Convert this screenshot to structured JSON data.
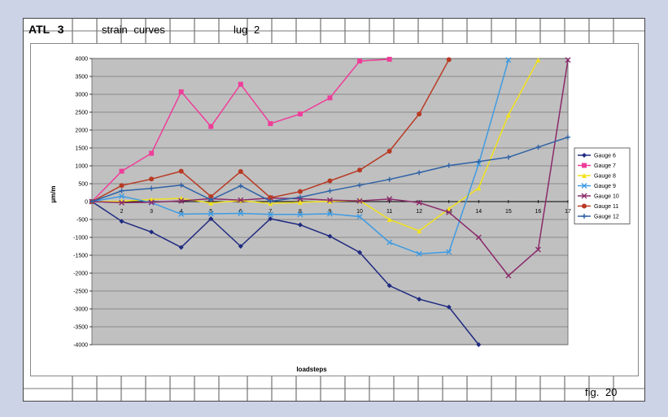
{
  "header": {
    "left_label": "ATL  3",
    "title": "strain  curves",
    "part": "lug  2"
  },
  "footer": {
    "figure_label": "fig.  20"
  },
  "chart_data": {
    "type": "line",
    "xlabel": "loadsteps",
    "ylabel": "µm/m",
    "ylim": [
      -4000,
      4000
    ],
    "yticks": [
      4000,
      3500,
      3000,
      2500,
      2000,
      1500,
      1000,
      500,
      0,
      -500,
      -1000,
      -1500,
      -2000,
      -2500,
      -3000,
      -3500,
      -4000
    ],
    "x": [
      1,
      2,
      3,
      4,
      5,
      6,
      7,
      8,
      9,
      10,
      11,
      12,
      13,
      14,
      15,
      16,
      17
    ],
    "xtick_labels": [
      "1",
      "2",
      "3",
      "4",
      "5",
      "6",
      "7",
      "8",
      "9",
      "10",
      "11",
      "12",
      "13",
      "14",
      "15",
      "16",
      "17"
    ],
    "grid": "horizontal",
    "legend": "right",
    "plot_background": "#c0c0c0",
    "series": [
      {
        "name": "Gauge   6",
        "color": "#1f2a80",
        "marker": "diamond",
        "points": [
          [
            1,
            0
          ],
          [
            2,
            -550
          ],
          [
            3,
            -850
          ],
          [
            4,
            -1280
          ],
          [
            5,
            -480
          ],
          [
            6,
            -1250
          ],
          [
            7,
            -480
          ],
          [
            8,
            -650
          ],
          [
            9,
            -970
          ],
          [
            10,
            -1420
          ],
          [
            11,
            -2350
          ],
          [
            12,
            -2730
          ],
          [
            13,
            -2950
          ],
          [
            14,
            -4000
          ]
        ]
      },
      {
        "name": "Gauge   7",
        "color": "#ee3e9a",
        "marker": "square",
        "points": [
          [
            1,
            0
          ],
          [
            2,
            850
          ],
          [
            3,
            1350
          ],
          [
            4,
            3070
          ],
          [
            5,
            2100
          ],
          [
            6,
            3280
          ],
          [
            7,
            2180
          ],
          [
            8,
            2450
          ],
          [
            9,
            2900
          ],
          [
            10,
            3930
          ],
          [
            11,
            3980
          ]
        ]
      },
      {
        "name": "Gauge   8",
        "color": "#f2e21c",
        "marker": "triangle",
        "points": [
          [
            1,
            0
          ],
          [
            2,
            10
          ],
          [
            3,
            60
          ],
          [
            4,
            90
          ],
          [
            5,
            -40
          ],
          [
            6,
            30
          ],
          [
            7,
            -50
          ],
          [
            8,
            -20
          ],
          [
            9,
            10
          ],
          [
            10,
            30
          ],
          [
            11,
            -500
          ],
          [
            12,
            -820
          ],
          [
            13,
            -200
          ],
          [
            14,
            380
          ],
          [
            15,
            2420
          ],
          [
            16,
            3960
          ]
        ]
      },
      {
        "name": "Gauge   9",
        "color": "#3f9be2",
        "marker": "x",
        "points": [
          [
            1,
            0
          ],
          [
            2,
            150
          ],
          [
            3,
            -30
          ],
          [
            4,
            -350
          ],
          [
            5,
            -340
          ],
          [
            6,
            -330
          ],
          [
            7,
            -360
          ],
          [
            8,
            -360
          ],
          [
            9,
            -340
          ],
          [
            10,
            -420
          ],
          [
            11,
            -1140
          ],
          [
            12,
            -1460
          ],
          [
            13,
            -1410
          ],
          [
            14,
            1050
          ],
          [
            15,
            3960
          ]
        ]
      },
      {
        "name": "Gauge   10",
        "color": "#8a2a6a",
        "marker": "x",
        "points": [
          [
            1,
            0
          ],
          [
            2,
            -30
          ],
          [
            3,
            -20
          ],
          [
            4,
            20
          ],
          [
            5,
            80
          ],
          [
            6,
            40
          ],
          [
            7,
            100
          ],
          [
            8,
            80
          ],
          [
            9,
            40
          ],
          [
            10,
            20
          ],
          [
            11,
            70
          ],
          [
            12,
            -30
          ],
          [
            13,
            -300
          ],
          [
            14,
            -1000
          ],
          [
            15,
            -2070
          ],
          [
            16,
            -1340
          ],
          [
            17,
            3960
          ]
        ]
      },
      {
        "name": "Gauge   11",
        "color": "#b83a24",
        "marker": "circle",
        "points": [
          [
            1,
            0
          ],
          [
            2,
            450
          ],
          [
            3,
            630
          ],
          [
            4,
            850
          ],
          [
            5,
            140
          ],
          [
            6,
            840
          ],
          [
            7,
            110
          ],
          [
            8,
            280
          ],
          [
            9,
            580
          ],
          [
            10,
            880
          ],
          [
            11,
            1410
          ],
          [
            12,
            2450
          ],
          [
            13,
            3970
          ]
        ]
      },
      {
        "name": "Gauge   12",
        "color": "#2f62a6",
        "marker": "plus",
        "points": [
          [
            1,
            0
          ],
          [
            2,
            300
          ],
          [
            3,
            370
          ],
          [
            4,
            460
          ],
          [
            5,
            50
          ],
          [
            6,
            440
          ],
          [
            7,
            10
          ],
          [
            8,
            120
          ],
          [
            9,
            300
          ],
          [
            10,
            460
          ],
          [
            11,
            620
          ],
          [
            12,
            810
          ],
          [
            13,
            1010
          ],
          [
            14,
            1120
          ],
          [
            15,
            1240
          ],
          [
            16,
            1520
          ],
          [
            17,
            1800
          ]
        ]
      }
    ]
  }
}
